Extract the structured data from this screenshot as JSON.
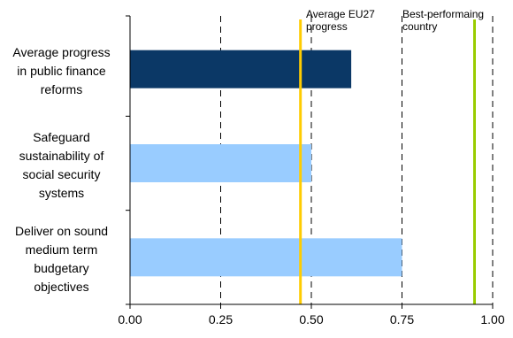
{
  "chart_data": {
    "type": "bar",
    "orientation": "horizontal",
    "categories": [
      "Average progress in public finance reforms",
      "Safeguard sustainability of social security systems",
      "Deliver on sound medium term budgetary objectives"
    ],
    "category_lines": [
      [
        "Average progress",
        "in public finance",
        "reforms"
      ],
      [
        "Safeguard",
        "sustainability of",
        "social security",
        "systems"
      ],
      [
        "Deliver on sound",
        "medium term",
        "budgetary",
        "objectives"
      ]
    ],
    "values": [
      0.61,
      0.5,
      0.75
    ],
    "bar_colors": [
      "#0b3866",
      "#99ccff",
      "#99ccff"
    ],
    "xlim": [
      0,
      1
    ],
    "xticks": [
      0,
      0.25,
      0.5,
      0.75,
      1
    ],
    "xtick_labels": [
      "0.00",
      "0.25",
      "0.50",
      "0.75",
      "1.00"
    ],
    "grid": "vertical dashed",
    "reference_lines": [
      {
        "label": "Average EU27 progress",
        "value": 0.47,
        "color": "#ffcc00"
      },
      {
        "label": "Best-performaing country",
        "value": 0.95,
        "color": "#99cc00"
      }
    ],
    "title": "",
    "xlabel": "",
    "ylabel": ""
  }
}
